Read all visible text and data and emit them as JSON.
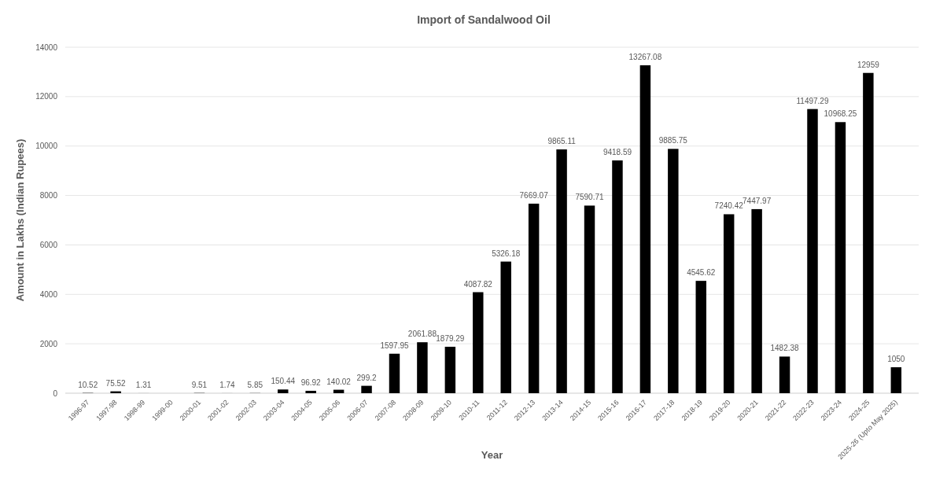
{
  "chart_data": {
    "type": "bar",
    "title": "Import of Sandalwood Oil",
    "xlabel": "Year",
    "ylabel": "Amount in Lakhs (Indian Rupees)",
    "categories": [
      "1996-97",
      "1997-98",
      "1998-99",
      "1999-00",
      "2000-01",
      "2001-02",
      "2002-03",
      "2003-04",
      "2004-05",
      "2005-06",
      "2006-07",
      "2007-08",
      "2008-09",
      "2009-10",
      "2010-11",
      "2011-12",
      "2012-13",
      "2013-14",
      "2014-15",
      "2015-16",
      "2016-17",
      "2017-18",
      "2018-19",
      "2019-20",
      "2020-21",
      "2021-22",
      "2022-23",
      "2023-24",
      "2024-25",
      "2025-26 (Upto May 2025)"
    ],
    "values": [
      10.52,
      75.52,
      1.31,
      null,
      9.51,
      1.74,
      5.85,
      150.44,
      96.92,
      140.02,
      299.2,
      1597.95,
      2061.88,
      1879.29,
      4087.82,
      5326.18,
      7669.07,
      9865.11,
      7590.71,
      9418.59,
      13267.08,
      9885.75,
      4545.62,
      7240.42,
      7447.97,
      1482.38,
      11497.29,
      10968.25,
      12959,
      1050
    ],
    "color": "#000000",
    "ylim": [
      0,
      14000
    ],
    "yticks": [
      0,
      2000,
      4000,
      6000,
      8000,
      10000,
      12000,
      14000
    ],
    "grid": "y",
    "data_labels": true
  }
}
